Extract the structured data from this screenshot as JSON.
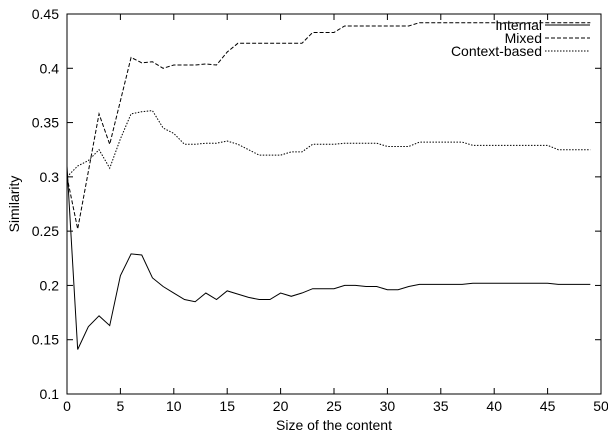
{
  "chart_data": {
    "type": "line",
    "title": "",
    "xlabel": "Size of the content",
    "ylabel": "Similarity",
    "xlim": [
      0,
      50
    ],
    "ylim": [
      0.1,
      0.45
    ],
    "xticks": [
      0,
      5,
      10,
      15,
      20,
      25,
      30,
      35,
      40,
      45,
      50
    ],
    "yticks": [
      0.1,
      0.15,
      0.2,
      0.25,
      0.3,
      0.35,
      0.4,
      0.45
    ],
    "grid": false,
    "legend_position": "top-right",
    "x": [
      0,
      1,
      2,
      3,
      4,
      5,
      6,
      7,
      8,
      9,
      10,
      11,
      12,
      13,
      14,
      15,
      16,
      17,
      18,
      19,
      20,
      21,
      22,
      23,
      24,
      25,
      26,
      27,
      28,
      29,
      30,
      31,
      32,
      33,
      34,
      35,
      36,
      37,
      38,
      39,
      40,
      41,
      42,
      43,
      44,
      45,
      46,
      47,
      48,
      49
    ],
    "series": [
      {
        "name": "Internal",
        "dash": "solid",
        "values": [
          0.31,
          0.141,
          0.162,
          0.172,
          0.163,
          0.209,
          0.229,
          0.228,
          0.207,
          0.199,
          0.193,
          0.187,
          0.185,
          0.193,
          0.187,
          0.195,
          0.192,
          0.189,
          0.187,
          0.187,
          0.193,
          0.19,
          0.193,
          0.197,
          0.197,
          0.197,
          0.2,
          0.2,
          0.199,
          0.199,
          0.196,
          0.196,
          0.199,
          0.201,
          0.201,
          0.201,
          0.201,
          0.201,
          0.202,
          0.202,
          0.202,
          0.202,
          0.202,
          0.202,
          0.202,
          0.202,
          0.201,
          0.201,
          0.201,
          0.201
        ]
      },
      {
        "name": "Mixed",
        "dash": "dashed",
        "values": [
          0.3,
          0.252,
          0.305,
          0.358,
          0.33,
          0.37,
          0.41,
          0.405,
          0.406,
          0.4,
          0.403,
          0.403,
          0.403,
          0.404,
          0.403,
          0.415,
          0.423,
          0.423,
          0.423,
          0.423,
          0.423,
          0.423,
          0.423,
          0.433,
          0.433,
          0.433,
          0.439,
          0.439,
          0.439,
          0.439,
          0.439,
          0.439,
          0.439,
          0.442,
          0.442,
          0.442,
          0.442,
          0.442,
          0.442,
          0.442,
          0.442,
          0.442,
          0.442,
          0.442,
          0.442,
          0.442,
          0.442,
          0.442,
          0.442,
          0.442
        ]
      },
      {
        "name": "Context-based",
        "dash": "dotted",
        "values": [
          0.3,
          0.31,
          0.315,
          0.325,
          0.308,
          0.335,
          0.358,
          0.36,
          0.361,
          0.345,
          0.34,
          0.33,
          0.33,
          0.331,
          0.331,
          0.333,
          0.33,
          0.325,
          0.32,
          0.32,
          0.32,
          0.323,
          0.323,
          0.33,
          0.33,
          0.33,
          0.331,
          0.331,
          0.331,
          0.331,
          0.328,
          0.328,
          0.328,
          0.332,
          0.332,
          0.332,
          0.332,
          0.332,
          0.329,
          0.329,
          0.329,
          0.329,
          0.329,
          0.329,
          0.329,
          0.329,
          0.325,
          0.325,
          0.325,
          0.325
        ]
      }
    ]
  }
}
